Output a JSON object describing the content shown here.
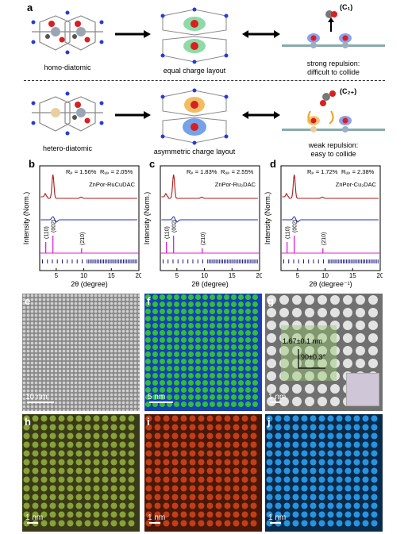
{
  "panel_a": {
    "label": "a",
    "row1": {
      "left_caption": "homo-diatomic",
      "mid_caption": "equal charge layout",
      "right_tag": "(C₁)",
      "right_caption_1": "strong repulsion:",
      "right_caption_2": "difficult to collide"
    },
    "row2": {
      "left_caption": "hetero-diatomic",
      "mid_caption": "asymmetric charge layout",
      "right_tag": "(C₂₊)",
      "right_caption_1": "weak repulsion:",
      "right_caption_2": "easy to collide"
    }
  },
  "xrd_panels": [
    {
      "label": "b",
      "rp": "Rₚ = 1.56%",
      "rwp": "Rᵤₚ = 2.05%",
      "sample": "ZnPor-RuCuDAC",
      "xlabel": "2θ (degree)",
      "ylabel": "Intensity (Norm.)",
      "xticks": [
        "5",
        "10",
        "15",
        "20"
      ],
      "peaks": [
        "(110)",
        "(002)",
        "(210)"
      ]
    },
    {
      "label": "c",
      "rp": "Rₚ = 1.83%",
      "rwp": "Rᵤₚ = 2.55%",
      "sample": "ZnPor-Ru₂DAC",
      "xlabel": "2θ (degree)",
      "ylabel": "Intensity (Norm.)",
      "xticks": [
        "5",
        "10",
        "15",
        "20"
      ],
      "peaks": [
        "(110)",
        "(002)",
        "(210)"
      ]
    },
    {
      "label": "d",
      "rp": "Rₚ = 1.72%",
      "rwp": "Rᵤₚ = 2.38%",
      "sample": "ZnPor-Cu₂DAC",
      "xlabel": "2θ (degree⁻¹)",
      "ylabel": "Intensity (Norm.)",
      "xticks": [
        "5",
        "10",
        "15",
        "20"
      ],
      "peaks": [
        "(110)",
        "(002)",
        "(210)"
      ]
    }
  ],
  "image_panels": {
    "e": {
      "label": "e",
      "scale": "10 nm"
    },
    "f": {
      "label": "f",
      "scale": "5 nm"
    },
    "g": {
      "label": "g",
      "scale": "1 nm",
      "dim": "1.67±0.1 nm",
      "angle": "90±0.3°"
    },
    "h": {
      "label": "h",
      "scale": "1 nm"
    },
    "i": {
      "label": "i",
      "scale": "1 nm"
    },
    "j": {
      "label": "j",
      "scale": "1 nm"
    }
  },
  "colors": {
    "fit_red": "#b01818",
    "diff_blue": "#1a2fd0",
    "bragg_magenta": "#e020d0",
    "tick_navy": "#1a1a80",
    "panel_f_green": "#2fbf3a",
    "panel_h_green": "#8aa83a",
    "panel_i_red": "#c8401a",
    "panel_j_blue": "#2a9ae8"
  }
}
